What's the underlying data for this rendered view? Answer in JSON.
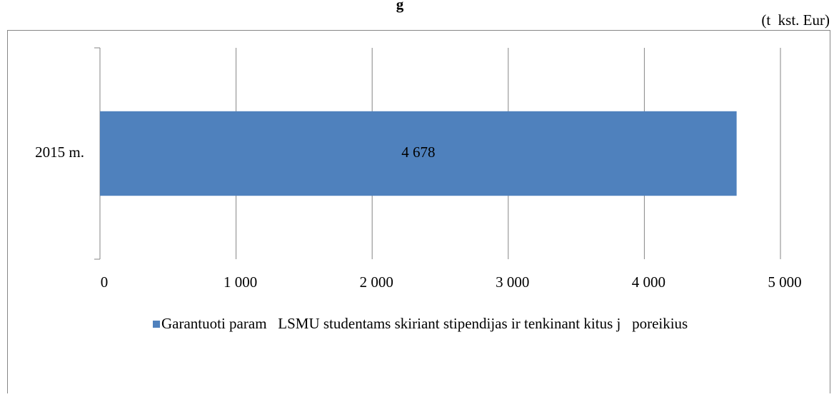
{
  "chart_data": {
    "type": "hbar",
    "title": "g",
    "unit_label": "(t  kst. Eur)",
    "categories": [
      "2015 m."
    ],
    "series": [
      {
        "name": "Garantuoti param   LSMU studentams skiriant stipendijas ir tenkinant kitus j   poreikius",
        "color": "#4f81bd",
        "values": [
          4678
        ],
        "value_labels": [
          "4 678"
        ]
      }
    ],
    "xlim": [
      0,
      5000
    ],
    "xticks": [
      0,
      {
        "value": 1000,
        "label": "1 000"
      },
      {
        "value": 2000,
        "label": "2 000"
      },
      {
        "value": 3000,
        "label": "3 000"
      },
      {
        "value": 4000,
        "label": "4 000"
      },
      {
        "value": 5000,
        "label": "5 000"
      }
    ],
    "grid": true,
    "legend": "bottom"
  }
}
